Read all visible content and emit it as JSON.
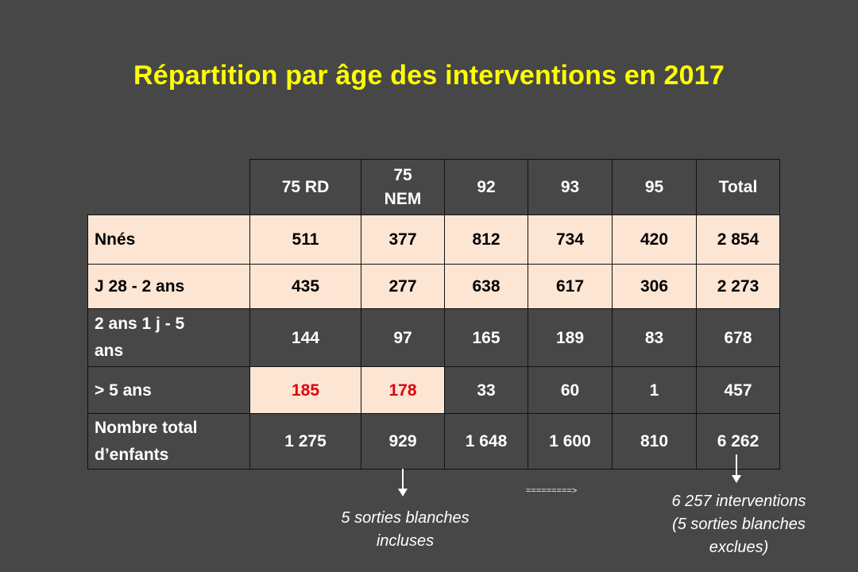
{
  "title": "Répartition par âge des interventions en 2017",
  "table": {
    "headers": [
      "75 RD",
      "75\nNEM",
      "92",
      "93",
      "95",
      "Total"
    ],
    "rows": [
      {
        "label": "Nnés",
        "values": [
          "511",
          "377",
          "812",
          "734",
          "420",
          "2 854"
        ]
      },
      {
        "label": "J 28 - 2 ans",
        "values": [
          "435",
          "277",
          "638",
          "617",
          "306",
          "2 273"
        ]
      },
      {
        "label": "2 ans 1 j - 5\nans",
        "values": [
          "144",
          "97",
          "165",
          "189",
          "83",
          "678"
        ]
      },
      {
        "label": "> 5 ans",
        "values": [
          "185",
          "178",
          "33",
          "60",
          "1",
          "457"
        ]
      },
      {
        "label": "Nombre total\nd’enfants",
        "values": [
          "1 275",
          "929",
          "1 648",
          "1 600",
          "810",
          "6 262"
        ]
      }
    ]
  },
  "notes": {
    "left": "5 sorties blanches\nincluses",
    "connector": "=========>",
    "right": "6 257 interventions\n(5 sorties blanches\nexclues)"
  },
  "colors": {
    "title": "#ffff00",
    "background": "#474747",
    "highlight_fill": "#fde5d4",
    "highlight_text": "#e0000f"
  }
}
